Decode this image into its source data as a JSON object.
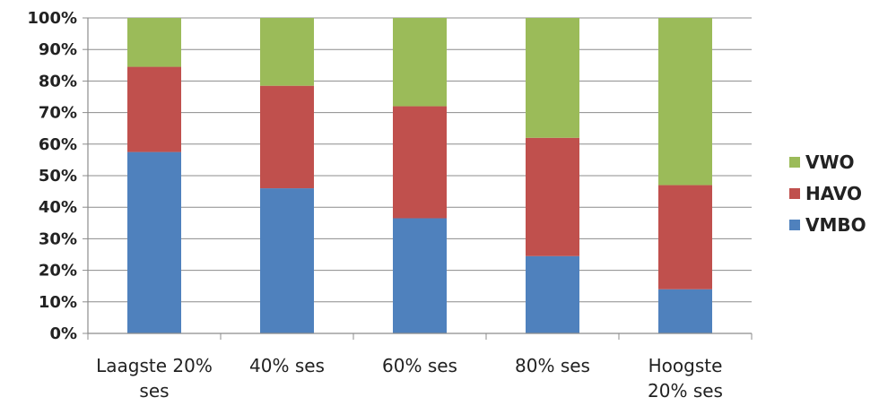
{
  "chart_data": {
    "type": "bar",
    "stacked": true,
    "normalized_percent": true,
    "categories": [
      [
        "Laagste 20%",
        "ses"
      ],
      [
        "40% ses"
      ],
      [
        "60% ses"
      ],
      [
        "80% ses"
      ],
      [
        "Hoogste",
        "20% ses"
      ]
    ],
    "series": [
      {
        "name": "VMBO",
        "color": "#4F81BD",
        "values": [
          57.5,
          46,
          36.5,
          24.5,
          14
        ]
      },
      {
        "name": "HAVO",
        "color": "#C0504D",
        "values": [
          27,
          32.5,
          35.5,
          37.5,
          33
        ]
      },
      {
        "name": "VWO",
        "color": "#9BBB59",
        "values": [
          15.5,
          21.5,
          28,
          38,
          53
        ]
      }
    ],
    "ylim": [
      0,
      100
    ],
    "yticks": [
      "0%",
      "10%",
      "20%",
      "30%",
      "40%",
      "50%",
      "60%",
      "70%",
      "80%",
      "90%",
      "100%"
    ],
    "grid": true,
    "legend_position": "right",
    "legend_order": [
      "VWO",
      "HAVO",
      "VMBO"
    ]
  }
}
